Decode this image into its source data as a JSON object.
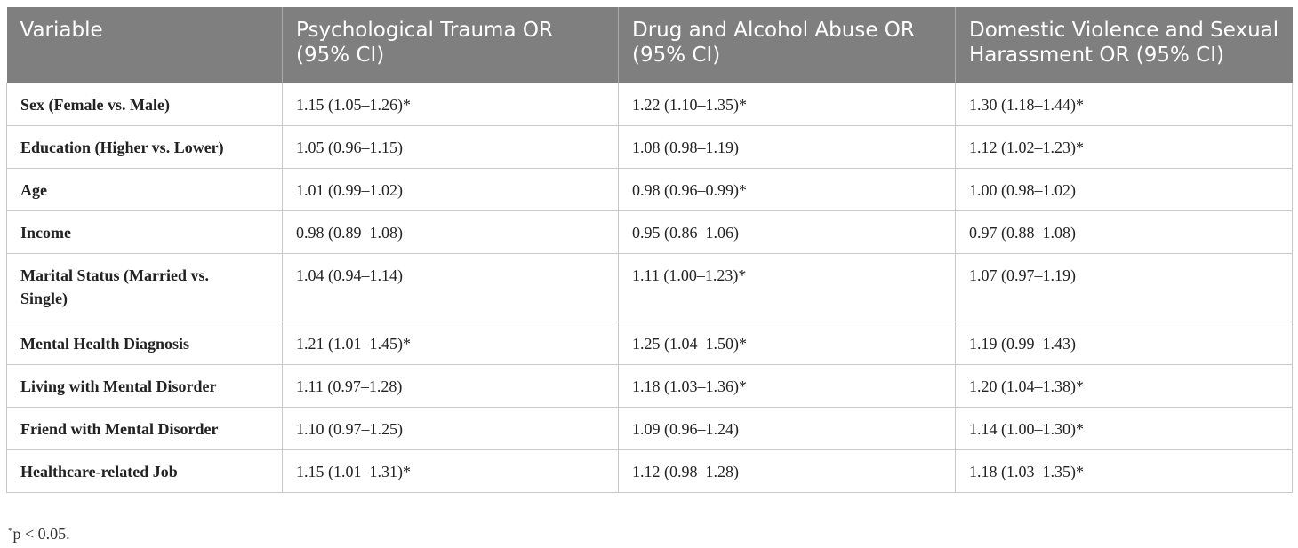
{
  "table": {
    "headers": [
      "Variable",
      "Psychological Trauma OR (95% CI)",
      "Drug and Alcohol Abuse OR (95% CI)",
      "Domestic Violence and Sexual Harassment OR (95% CI)"
    ],
    "rows": [
      [
        "Sex (Female vs. Male)",
        "1.15 (1.05–1.26)*",
        "1.22 (1.10–1.35)*",
        "1.30 (1.18–1.44)*"
      ],
      [
        "Education (Higher vs. Lower)",
        "1.05 (0.96–1.15)",
        "1.08 (0.98–1.19)",
        "1.12 (1.02–1.23)*"
      ],
      [
        "Age",
        "1.01 (0.99–1.02)",
        "0.98 (0.96–0.99)*",
        "1.00 (0.98–1.02)"
      ],
      [
        "Income",
        "0.98 (0.89–1.08)",
        "0.95 (0.86–1.06)",
        "0.97 (0.88–1.08)"
      ],
      [
        "Marital Status (Married vs. Single)",
        "1.04 (0.94–1.14)",
        "1.11 (1.00–1.23)*",
        "1.07 (0.97–1.19)"
      ],
      [
        "Mental Health Diagnosis",
        "1.21 (1.01–1.45)*",
        "1.25 (1.04–1.50)*",
        "1.19 (0.99–1.43)"
      ],
      [
        "Living with Mental Disorder",
        "1.11 (0.97–1.28)",
        "1.18 (1.03–1.36)*",
        "1.20 (1.04–1.38)*"
      ],
      [
        "Friend with Mental Disorder",
        "1.10 (0.97–1.25)",
        "1.09 (0.96–1.24)",
        "1.14 (1.00–1.30)*"
      ],
      [
        "Healthcare-related Job",
        "1.15 (1.01–1.31)*",
        "1.12 (0.98–1.28)",
        "1.18 (1.03–1.35)*"
      ]
    ]
  },
  "footnote": {
    "marker": "*",
    "text": "p < 0.05."
  }
}
